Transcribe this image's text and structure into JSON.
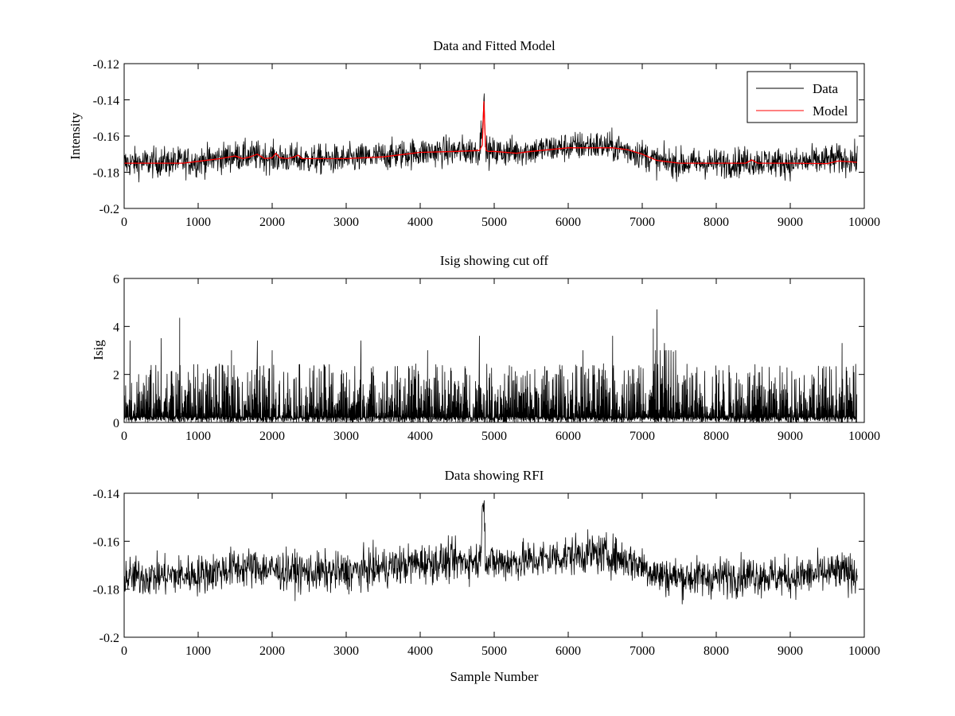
{
  "chart_data": [
    {
      "type": "line",
      "title": "Data and Fitted Model",
      "xlabel": "",
      "ylabel": "Intensity",
      "xlim": [
        0,
        10000
      ],
      "ylim": [
        -0.2,
        -0.12
      ],
      "xticks": [
        0,
        1000,
        2000,
        3000,
        4000,
        5000,
        6000,
        7000,
        8000,
        9000,
        10000
      ],
      "xtick_labels": [
        "0",
        "1000",
        "2000",
        "3000",
        "4000",
        "5000",
        "6000",
        "7000",
        "8000",
        "9000",
        "10000"
      ],
      "yticks": [
        -0.2,
        -0.18,
        -0.16,
        -0.14,
        -0.12
      ],
      "ytick_labels": [
        "-0.2",
        "-0.18",
        "-0.16",
        "-0.14",
        "-0.12"
      ],
      "legend": {
        "position": "top-right",
        "entries": [
          "Data",
          "Model"
        ]
      },
      "series": [
        {
          "name": "Data",
          "color": "#000000",
          "kind": "noisy",
          "x_range": [
            0,
            9900
          ],
          "noise_amplitude": 0.0045,
          "baseline": {
            "x": [
              0,
              1000,
              1500,
              1800,
              2000,
              2500,
              3000,
              4000,
              4800,
              4860,
              4880,
              4920,
              5000,
              5500,
              6000,
              6300,
              6600,
              7000,
              7200,
              7500,
              8000,
              8500,
              9000,
              9600,
              9900
            ],
            "y": [
              -0.175,
              -0.174,
              -0.171,
              -0.171,
              -0.172,
              -0.173,
              -0.173,
              -0.169,
              -0.168,
              -0.14,
              -0.168,
              -0.169,
              -0.169,
              -0.168,
              -0.166,
              -0.165,
              -0.166,
              -0.17,
              -0.174,
              -0.175,
              -0.175,
              -0.174,
              -0.175,
              -0.173,
              -0.173
            ]
          }
        },
        {
          "name": "Model",
          "color": "#ff0000",
          "kind": "smooth",
          "x": [
            0,
            800,
            1000,
            1300,
            1500,
            1600,
            1700,
            1800,
            1900,
            2000,
            2050,
            2100,
            2200,
            2300,
            2350,
            2400,
            2600,
            3000,
            3500,
            4000,
            4500,
            4800,
            4840,
            4860,
            4875,
            4890,
            4920,
            5000,
            5300,
            5500,
            6000,
            6300,
            6600,
            6800,
            7000,
            7200,
            7500,
            8000,
            8400,
            8480,
            8560,
            9000,
            9500,
            9650,
            9900
          ],
          "y": [
            -0.175,
            -0.175,
            -0.174,
            -0.1725,
            -0.171,
            -0.1725,
            -0.1715,
            -0.17,
            -0.1725,
            -0.172,
            -0.1695,
            -0.172,
            -0.1725,
            -0.1715,
            -0.1705,
            -0.1725,
            -0.1725,
            -0.1725,
            -0.1715,
            -0.169,
            -0.1685,
            -0.168,
            -0.165,
            -0.141,
            -0.158,
            -0.168,
            -0.1685,
            -0.1685,
            -0.1695,
            -0.1685,
            -0.1665,
            -0.1665,
            -0.1665,
            -0.1675,
            -0.17,
            -0.1735,
            -0.175,
            -0.175,
            -0.175,
            -0.1732,
            -0.175,
            -0.175,
            -0.1752,
            -0.1738,
            -0.1745
          ]
        }
      ]
    },
    {
      "type": "line",
      "title": "Isig showing cut off",
      "xlabel": "",
      "ylabel": "Isig",
      "xlim": [
        0,
        10000
      ],
      "ylim": [
        0,
        6
      ],
      "xticks": [
        0,
        1000,
        2000,
        3000,
        4000,
        5000,
        6000,
        7000,
        8000,
        9000,
        10000
      ],
      "xtick_labels": [
        "0",
        "1000",
        "2000",
        "3000",
        "4000",
        "5000",
        "6000",
        "7000",
        "8000",
        "9000",
        "10000"
      ],
      "yticks": [
        0,
        2,
        4,
        6
      ],
      "ytick_labels": [
        "0",
        "2",
        "4",
        "6"
      ],
      "series": [
        {
          "name": "Isig",
          "color": "#000000",
          "kind": "spiky",
          "x_range": [
            0,
            9900
          ],
          "typical_max": 2.0,
          "peaks": {
            "x": [
              80,
              500,
              750,
              1450,
              1800,
              2000,
              3200,
              4100,
              4800,
              6200,
              6600,
              7150,
              7200,
              7300,
              9700
            ],
            "y": [
              3.4,
              3.5,
              4.35,
              3.0,
              3.4,
              3.0,
              3.4,
              3.0,
              3.6,
              3.0,
              3.6,
              3.9,
              4.7,
              3.3,
              3.3
            ]
          }
        }
      ]
    },
    {
      "type": "line",
      "title": "Data showing RFI",
      "xlabel": "Sample Number",
      "ylabel": "",
      "xlim": [
        0,
        10000
      ],
      "ylim": [
        -0.2,
        -0.14
      ],
      "xticks": [
        0,
        1000,
        2000,
        3000,
        4000,
        5000,
        6000,
        7000,
        8000,
        9000,
        10000
      ],
      "xtick_labels": [
        "0",
        "1000",
        "2000",
        "3000",
        "4000",
        "5000",
        "6000",
        "7000",
        "8000",
        "9000",
        "10000"
      ],
      "yticks": [
        -0.2,
        -0.18,
        -0.16,
        -0.14
      ],
      "ytick_labels": [
        "-0.2",
        "-0.18",
        "-0.16",
        "-0.14"
      ],
      "series": [
        {
          "name": "Data",
          "color": "#000000",
          "kind": "noisy",
          "x_range": [
            0,
            9900
          ],
          "noise_amplitude": 0.0045,
          "baseline": {
            "x": [
              0,
              1000,
              1500,
              1800,
              2000,
              2500,
              3000,
              4000,
              4800,
              4860,
              4880,
              4920,
              5000,
              5500,
              6000,
              6300,
              6600,
              7000,
              7200,
              7500,
              8000,
              8500,
              9000,
              9600,
              9900
            ],
            "y": [
              -0.175,
              -0.174,
              -0.171,
              -0.171,
              -0.172,
              -0.173,
              -0.173,
              -0.169,
              -0.168,
              -0.14,
              -0.168,
              -0.169,
              -0.169,
              -0.168,
              -0.166,
              -0.165,
              -0.166,
              -0.17,
              -0.174,
              -0.175,
              -0.175,
              -0.174,
              -0.175,
              -0.173,
              -0.173
            ]
          }
        }
      ]
    }
  ]
}
